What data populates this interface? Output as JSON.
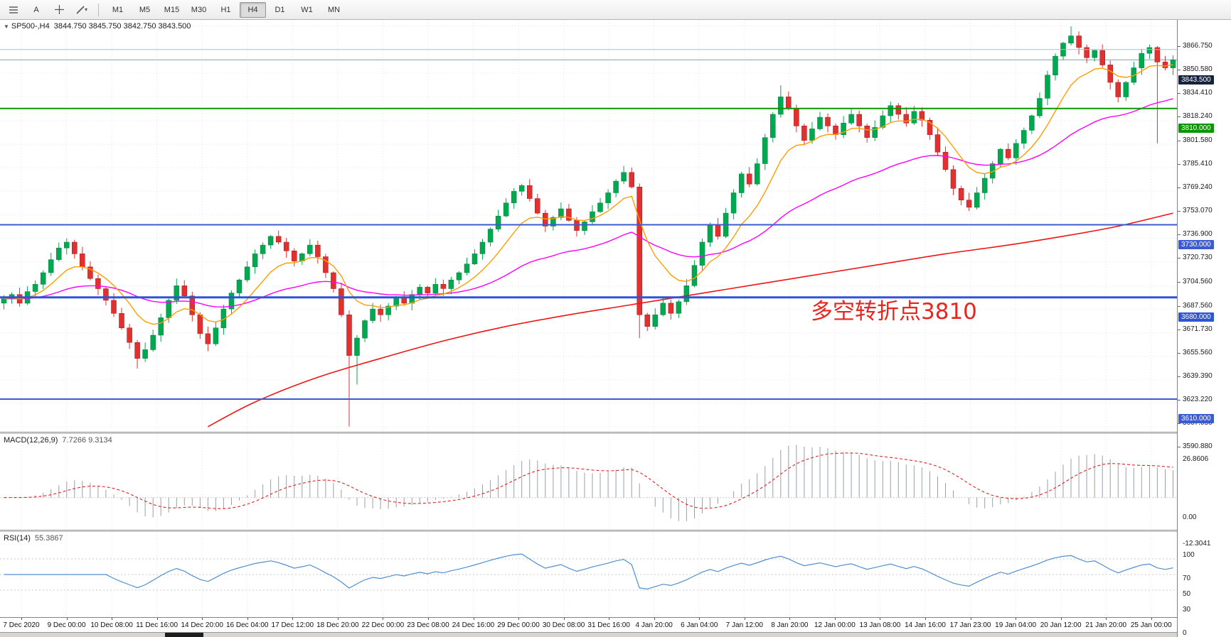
{
  "toolbar": {
    "icons": [
      {
        "name": "menu-icon"
      },
      {
        "name": "font-a-icon",
        "label": "A"
      },
      {
        "name": "crosshair-icon"
      },
      {
        "name": "draw-tool-icon",
        "caret": "▾"
      }
    ],
    "timeframes": [
      "M1",
      "M5",
      "M15",
      "M30",
      "H1",
      "H4",
      "D1",
      "W1",
      "MN"
    ],
    "active_timeframe": "H4"
  },
  "main_chart": {
    "header": {
      "collapse_icon": "▼",
      "symbol": "SP500-,H4",
      "values": "3844.750 3845.750 3842.750 3843.500"
    },
    "current_price": {
      "value": 3843.5,
      "label": "3843.500",
      "line_color": "#7e9bbf",
      "badge_color": "#15233e"
    },
    "hlines": [
      {
        "value": 3850.58,
        "label": "",
        "color": "#a9c0d8",
        "width": 1
      },
      {
        "value": 3810.0,
        "label": "3810.000",
        "color": "#0a9600",
        "width": 2
      },
      {
        "value": 3730.0,
        "label": "3730.000",
        "color": "#3c5bd0",
        "width": 2
      },
      {
        "value": 3680.0,
        "label": "3680.000",
        "color": "#2f55d4",
        "width": 3
      },
      {
        "value": 3610.0,
        "label": "3610.000",
        "color": "#3c5bd0",
        "width": 2
      }
    ],
    "annotation": {
      "text": "多空转折点3810",
      "color": "#e8251e"
    }
  },
  "price_axis": {
    "labels": [
      "3866.750",
      "3850.580",
      "3834.410",
      "3818.240",
      "3801.580",
      "3785.410",
      "3769.240",
      "3753.070",
      "3736.900",
      "3720.730",
      "3704.560",
      "3687.560",
      "3671.730",
      "3655.560",
      "3639.390",
      "3623.220",
      "3607.050",
      "3590.880"
    ]
  },
  "time_axis": {
    "labels": [
      "7 Dec 2020",
      "9 Dec 00:00",
      "10 Dec 08:00",
      "11 Dec 16:00",
      "14 Dec 20:00",
      "16 Dec 04:00",
      "17 Dec 12:00",
      "18 Dec 20:00",
      "22 Dec 00:00",
      "23 Dec 08:00",
      "24 Dec 16:00",
      "29 Dec 00:00",
      "30 Dec 08:00",
      "31 Dec 16:00",
      "4 Jan 20:00",
      "6 Jan 04:00",
      "7 Jan 12:00",
      "8 Jan 20:00",
      "12 Jan 00:00",
      "13 Jan 08:00",
      "14 Jan 16:00",
      "17 Jan 23:00",
      "19 Jan 04:00",
      "20 Jan 12:00",
      "21 Jan 20:00",
      "25 Jan 00:00"
    ]
  },
  "chart_data": {
    "type": "candlestick",
    "symbol": "SP500-",
    "timeframe": "H4",
    "title": "SP500-,H4 3844.750 3845.750 3842.750 3843.500",
    "price_range": {
      "top": 3871.0,
      "bottom": 3587.5
    },
    "up_color": "#00a94f",
    "down_color": "#e03030",
    "closes": [
      3679,
      3682,
      3676,
      3684,
      3689,
      3697,
      3706,
      3714,
      3718,
      3710,
      3701,
      3693,
      3686,
      3678,
      3669,
      3659,
      3649,
      3638,
      3644,
      3654,
      3666,
      3678,
      3688,
      3681,
      3668,
      3655,
      3648,
      3659,
      3672,
      3683,
      3692,
      3701,
      3710,
      3716,
      3722,
      3718,
      3712,
      3705,
      3710,
      3716,
      3708,
      3697,
      3686,
      3668,
      3640,
      3652,
      3664,
      3672,
      3668,
      3674,
      3680,
      3676,
      3682,
      3687,
      3683,
      3689,
      3686,
      3692,
      3697,
      3703,
      3710,
      3718,
      3727,
      3736,
      3745,
      3753,
      3757,
      3748,
      3738,
      3729,
      3735,
      3741,
      3733,
      3726,
      3732,
      3739,
      3745,
      3752,
      3760,
      3766,
      3756,
      3668,
      3660,
      3668,
      3676,
      3669,
      3677,
      3688,
      3702,
      3718,
      3730,
      3722,
      3738,
      3752,
      3765,
      3758,
      3772,
      3790,
      3806,
      3818,
      3810,
      3798,
      3788,
      3796,
      3804,
      3798,
      3792,
      3800,
      3806,
      3798,
      3790,
      3797,
      3805,
      3812,
      3806,
      3800,
      3808,
      3802,
      3792,
      3780,
      3768,
      3755,
      3747,
      3742,
      3752,
      3762,
      3772,
      3782,
      3776,
      3786,
      3795,
      3805,
      3817,
      3833,
      3846,
      3855,
      3860,
      3852,
      3845,
      3850,
      3840,
      3828,
      3818,
      3828,
      3838,
      3848,
      3852,
      3842,
      3838,
      3843.5
    ],
    "wick_overrides": [
      {
        "i": 17,
        "low": 3631
      },
      {
        "i": 26,
        "low": 3643
      },
      {
        "i": 44,
        "low": 3591
      },
      {
        "i": 45,
        "low": 3620
      },
      {
        "i": 79,
        "high": 3770.5
      },
      {
        "i": 81,
        "low": 3652
      },
      {
        "i": 99,
        "high": 3826
      },
      {
        "i": 136,
        "high": 3866.5
      },
      {
        "i": 147,
        "low": 3786
      }
    ],
    "ma_fast": {
      "name": "fast-ma",
      "color": "#ff9d00",
      "period": 9
    },
    "ma_mid": {
      "name": "mid-ma",
      "color": "#ff00ff",
      "period": 36
    },
    "ma_slow": {
      "name": "slow-ma",
      "color": "#f01414",
      "points": [
        [
          26,
          3591
        ],
        [
          32,
          3608
        ],
        [
          40,
          3625
        ],
        [
          48,
          3638
        ],
        [
          56,
          3650
        ],
        [
          64,
          3660
        ],
        [
          72,
          3668
        ],
        [
          80,
          3675
        ],
        [
          88,
          3682
        ],
        [
          96,
          3689
        ],
        [
          104,
          3696
        ],
        [
          112,
          3703
        ],
        [
          120,
          3710
        ],
        [
          128,
          3716
        ],
        [
          136,
          3723
        ],
        [
          142,
          3729
        ],
        [
          149,
          3738
        ]
      ]
    },
    "macd": {
      "label": "MACD(12,26,9)",
      "values": "7.7266 9.3134",
      "params": [
        12,
        26,
        9
      ],
      "axis": [
        "26.8606",
        "0.00",
        "-12.3041"
      ],
      "axis_values": [
        26.8606,
        0,
        -12.3041
      ],
      "range": {
        "top": 29.5,
        "bottom": -14.9
      },
      "histogram_color": "#9aa0a6",
      "signal_color": "#e22222"
    },
    "rsi": {
      "label": "RSI(14)",
      "value": "55.3867",
      "params": 14,
      "axis": [
        "100",
        "70",
        "50",
        "30",
        "0"
      ],
      "axis_values": [
        100,
        70,
        50,
        30,
        0
      ],
      "levels": [
        70,
        50,
        30
      ],
      "color": "#4f8fd0"
    }
  }
}
